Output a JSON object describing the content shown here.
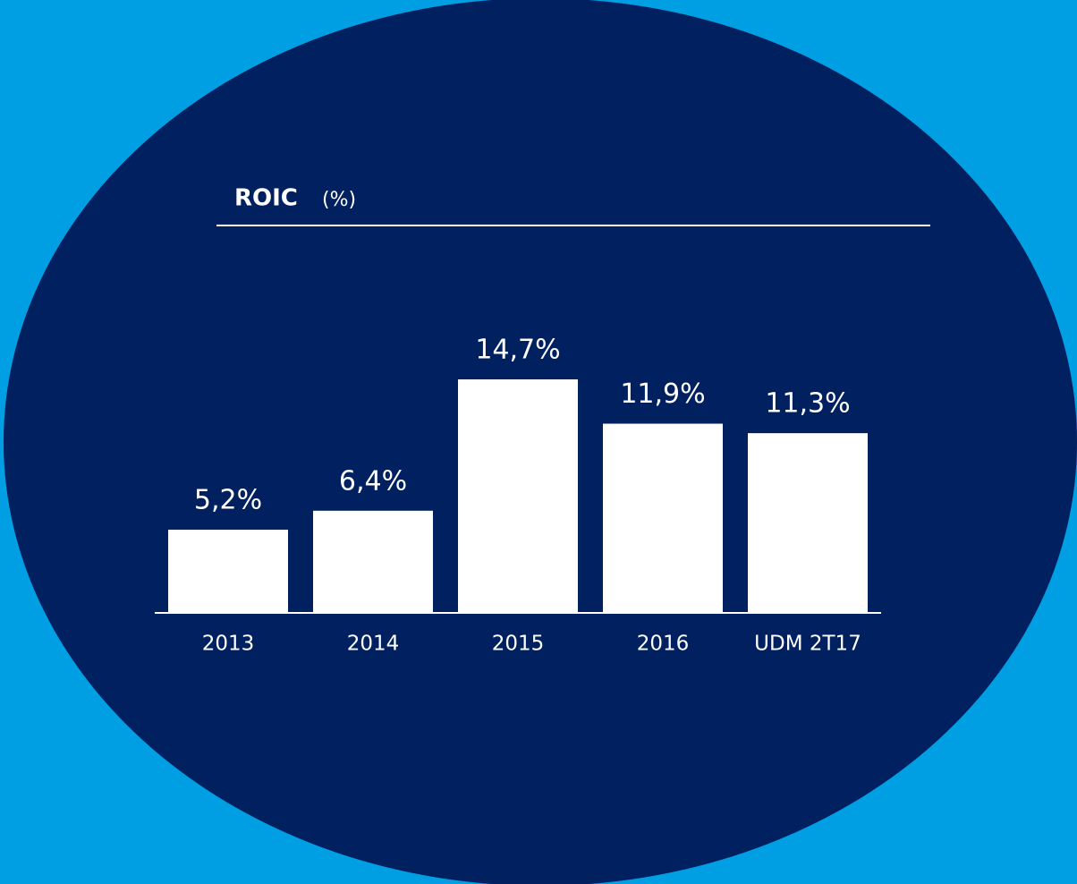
{
  "chart_data": {
    "type": "bar",
    "title": "ROIC",
    "subtitle": "(%)",
    "categories": [
      "2013",
      "2014",
      "2015",
      "2016",
      "UDM 2T17"
    ],
    "values": [
      5.2,
      6.4,
      14.7,
      11.9,
      11.3
    ],
    "value_labels": [
      "5,2%",
      "6,4%",
      "14,7%",
      "11,9%",
      "11,3%"
    ],
    "color": "#ffffff"
  }
}
